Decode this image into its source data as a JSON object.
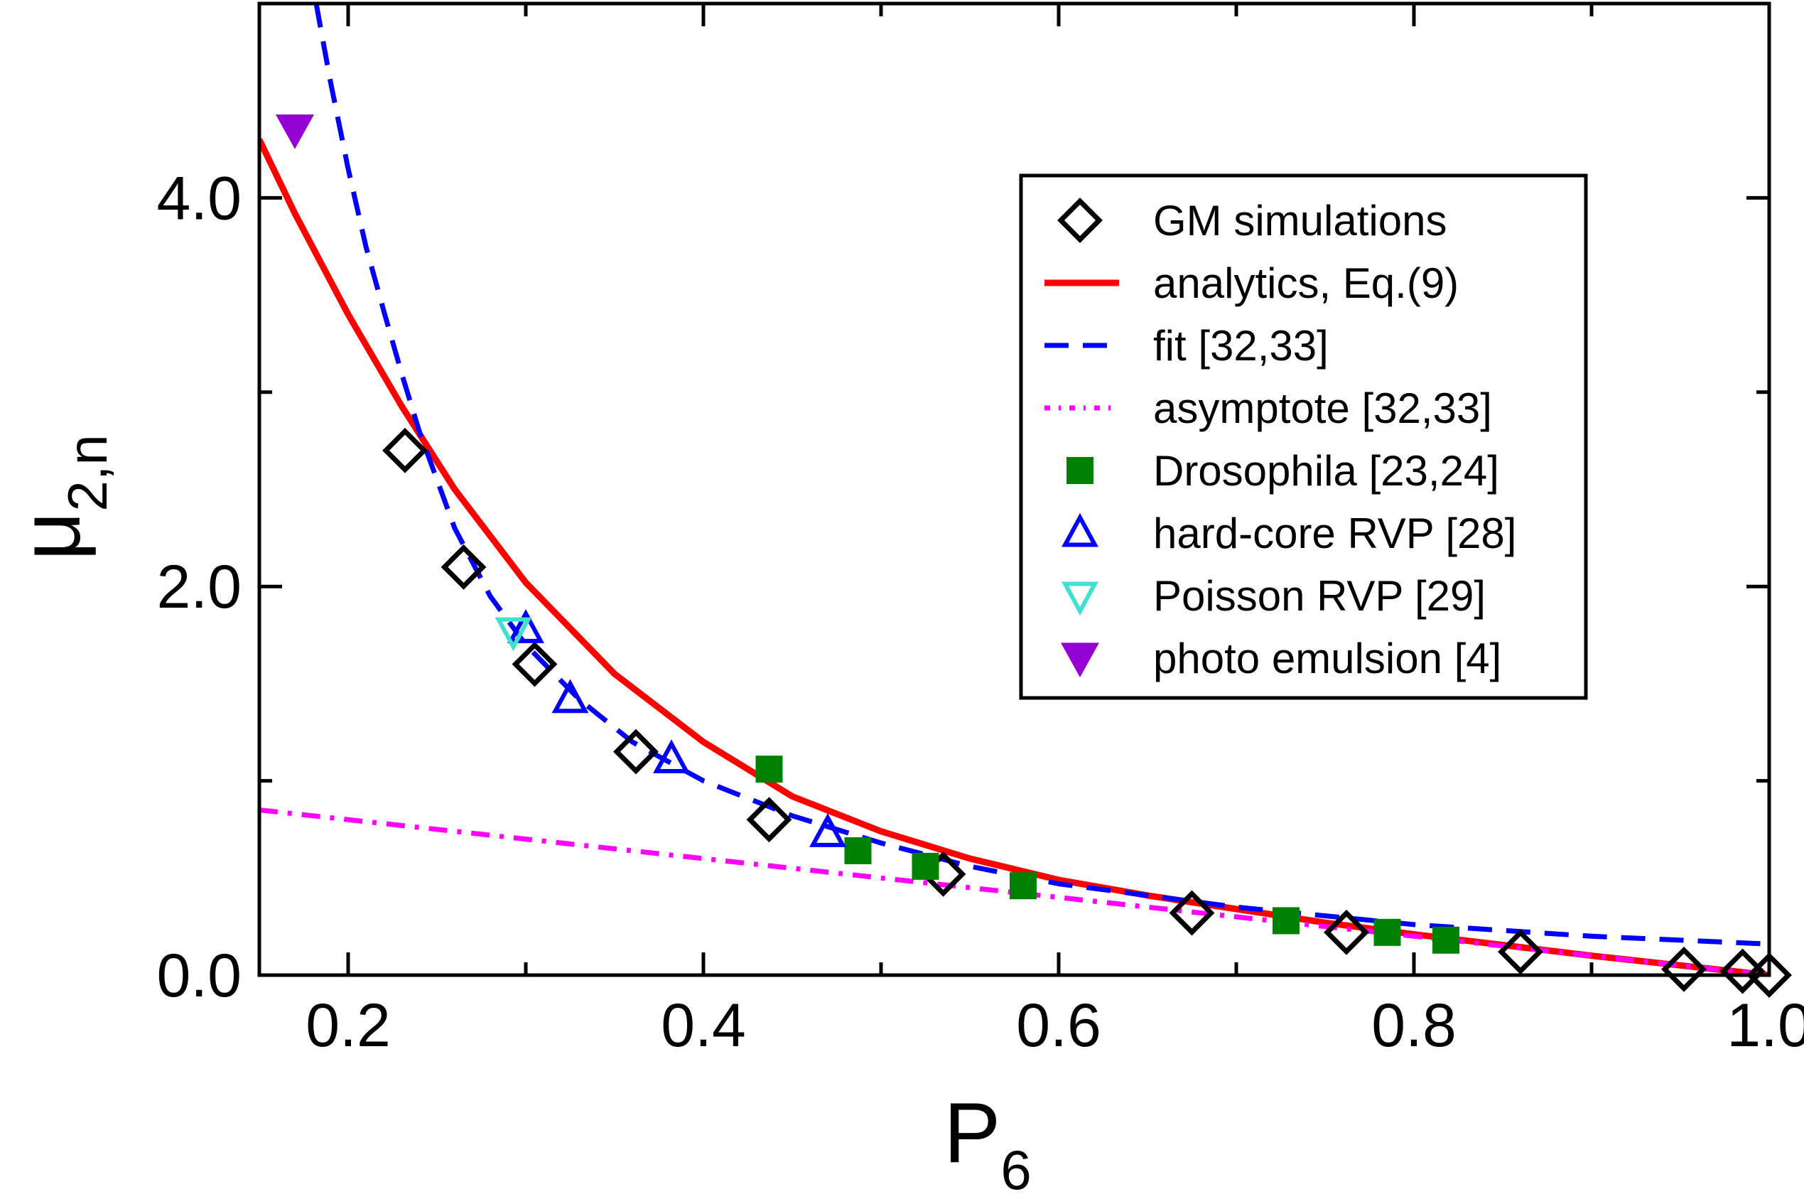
{
  "chart_data": {
    "type": "line",
    "xlabel": "P",
    "xlabel_subscript": "6",
    "ylabel": "μ",
    "ylabel_subscript": "2,n",
    "xlim": [
      0.15,
      1.0
    ],
    "ylim": [
      0.0,
      5.0
    ],
    "x_ticks": [
      {
        "value": 0.2,
        "label": "0.2"
      },
      {
        "value": 0.4,
        "label": "0.4"
      },
      {
        "value": 0.6,
        "label": "0.6"
      },
      {
        "value": 0.8,
        "label": "0.8"
      },
      {
        "value": 1.0,
        "label": "1.0"
      }
    ],
    "x_minor_ticks": [
      0.3,
      0.5,
      0.7,
      0.9
    ],
    "y_ticks": [
      {
        "value": 0.0,
        "label": "0.0"
      },
      {
        "value": 2.0,
        "label": "2.0"
      },
      {
        "value": 4.0,
        "label": "4.0"
      }
    ],
    "y_minor_ticks": [
      1.0,
      3.0
    ],
    "legend_position": "top-right",
    "series": [
      {
        "name": "GM simulations",
        "kind": "marker",
        "marker": "diamond-open",
        "color": "#000000",
        "points": [
          [
            0.232,
            2.7
          ],
          [
            0.265,
            2.1
          ],
          [
            0.305,
            1.6
          ],
          [
            0.362,
            1.15
          ],
          [
            0.437,
            0.8
          ],
          [
            0.535,
            0.52
          ],
          [
            0.675,
            0.32
          ],
          [
            0.762,
            0.22
          ],
          [
            0.86,
            0.12
          ],
          [
            0.952,
            0.03
          ],
          [
            0.985,
            0.02
          ],
          [
            1.0,
            0.0
          ]
        ]
      },
      {
        "name": "analytics, Eq.(9)",
        "kind": "curve",
        "style": "solid",
        "color": "#ff0000",
        "points": [
          [
            0.15,
            4.3
          ],
          [
            0.17,
            3.92
          ],
          [
            0.2,
            3.4
          ],
          [
            0.23,
            2.93
          ],
          [
            0.26,
            2.5
          ],
          [
            0.3,
            2.02
          ],
          [
            0.35,
            1.55
          ],
          [
            0.4,
            1.2
          ],
          [
            0.45,
            0.92
          ],
          [
            0.5,
            0.74
          ],
          [
            0.55,
            0.6
          ],
          [
            0.6,
            0.49
          ],
          [
            0.65,
            0.41
          ],
          [
            0.7,
            0.34
          ],
          [
            0.75,
            0.27
          ],
          [
            0.8,
            0.21
          ],
          [
            0.85,
            0.155
          ],
          [
            0.9,
            0.1
          ],
          [
            0.95,
            0.05
          ],
          [
            1.0,
            0.0
          ]
        ]
      },
      {
        "name": "fit [32,33]",
        "kind": "curve",
        "style": "dashed",
        "color": "#0000ff",
        "points": [
          [
            0.182,
            5.0
          ],
          [
            0.19,
            4.6
          ],
          [
            0.2,
            4.15
          ],
          [
            0.21,
            3.75
          ],
          [
            0.22,
            3.42
          ],
          [
            0.23,
            3.1
          ],
          [
            0.24,
            2.8
          ],
          [
            0.26,
            2.3
          ],
          [
            0.28,
            1.95
          ],
          [
            0.3,
            1.7
          ],
          [
            0.33,
            1.42
          ],
          [
            0.36,
            1.2
          ],
          [
            0.4,
            1.0
          ],
          [
            0.45,
            0.82
          ],
          [
            0.5,
            0.68
          ],
          [
            0.55,
            0.56
          ],
          [
            0.6,
            0.47
          ],
          [
            0.7,
            0.35
          ],
          [
            0.8,
            0.26
          ],
          [
            0.9,
            0.2
          ],
          [
            1.0,
            0.16
          ]
        ]
      },
      {
        "name": "asymptote [32,33]",
        "kind": "curve",
        "style": "dashdot",
        "color": "#ff00ff",
        "points": [
          [
            0.15,
            0.85
          ],
          [
            0.3,
            0.7
          ],
          [
            0.4,
            0.6
          ],
          [
            0.5,
            0.5
          ],
          [
            0.6,
            0.4
          ],
          [
            0.7,
            0.3
          ],
          [
            0.8,
            0.2
          ],
          [
            0.9,
            0.1
          ],
          [
            1.0,
            0.0
          ]
        ]
      },
      {
        "name": "Drosophila [23,24]",
        "kind": "marker",
        "marker": "square-filled",
        "color": "#008000",
        "points": [
          [
            0.437,
            1.06
          ],
          [
            0.487,
            0.64
          ],
          [
            0.525,
            0.56
          ],
          [
            0.58,
            0.46
          ],
          [
            0.728,
            0.28
          ],
          [
            0.785,
            0.22
          ],
          [
            0.818,
            0.18
          ]
        ]
      },
      {
        "name": "hard-core RVP [28]",
        "kind": "marker",
        "marker": "triangle-up-open",
        "color": "#0000ff",
        "points": [
          [
            0.3,
            1.78
          ],
          [
            0.325,
            1.42
          ],
          [
            0.382,
            1.11
          ],
          [
            0.47,
            0.73
          ]
        ]
      },
      {
        "name": "Poisson RVP [29]",
        "kind": "marker",
        "marker": "triangle-down-open",
        "color": "#40e0d0",
        "points": [
          [
            0.293,
            1.77
          ]
        ]
      },
      {
        "name": "photo emulsion [4]",
        "kind": "marker",
        "marker": "triangle-down-filled",
        "color": "#9400d3",
        "points": [
          [
            0.17,
            4.35
          ]
        ]
      }
    ]
  }
}
